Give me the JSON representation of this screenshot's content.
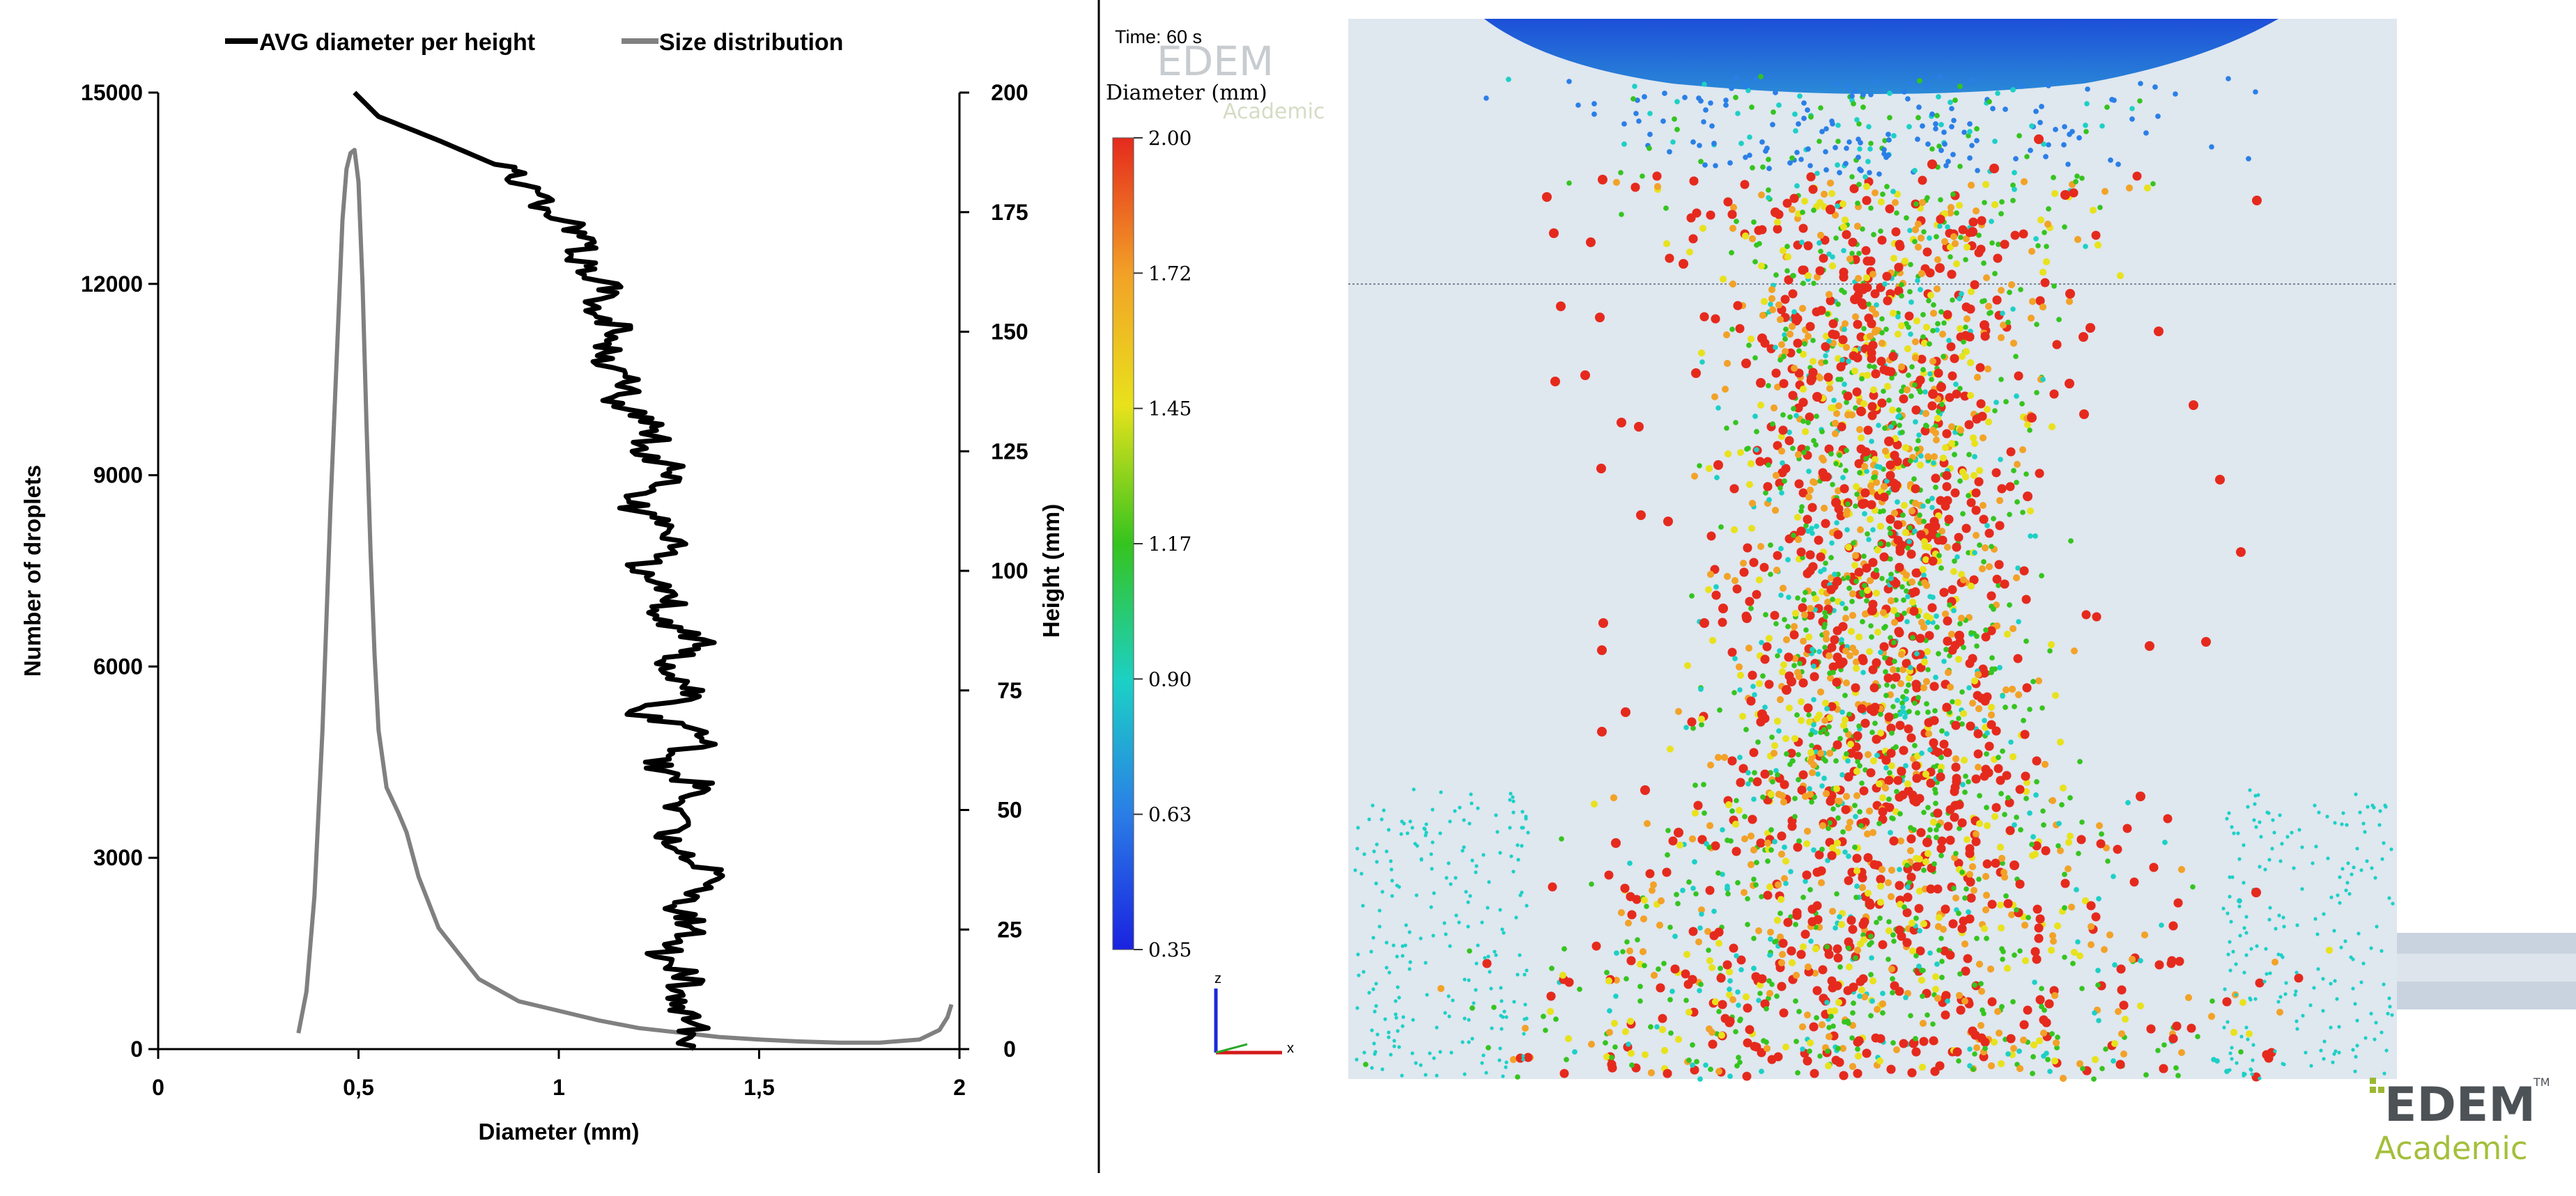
{
  "chart_data": {
    "type": "line",
    "legend": {
      "position": "top",
      "entries": [
        {
          "name": "AVG diameter per height",
          "color": "#000000"
        },
        {
          "name": "Size distribution",
          "color": "#808080"
        }
      ]
    },
    "xlabel": "Diameter (mm)",
    "ylabel_left": "Number of droplets",
    "ylabel_right": "Height (mm)",
    "xlim": [
      0,
      2
    ],
    "ylim_left": [
      0,
      15000
    ],
    "ylim_right": [
      0,
      200
    ],
    "x_ticks": [
      0,
      0.5,
      1,
      1.5,
      2
    ],
    "x_tick_labels": [
      "0",
      "0,5",
      "1",
      "1,5",
      "2"
    ],
    "y_left_ticks": [
      0,
      3000,
      6000,
      9000,
      12000,
      15000
    ],
    "y_left_tick_labels": [
      "0",
      "3000",
      "6000",
      "9000",
      "12000",
      "15000"
    ],
    "y_right_ticks": [
      0,
      25,
      50,
      75,
      100,
      125,
      150,
      175,
      200
    ],
    "y_right_tick_labels": [
      "0",
      "25",
      "50",
      "75",
      "100",
      "125",
      "150",
      "175",
      "200"
    ],
    "series": [
      {
        "name": "Size distribution",
        "axis": "left",
        "x": [
          0.35,
          0.37,
          0.39,
          0.41,
          0.43,
          0.45,
          0.46,
          0.47,
          0.48,
          0.49,
          0.5,
          0.51,
          0.52,
          0.53,
          0.54,
          0.55,
          0.57,
          0.6,
          0.62,
          0.65,
          0.7,
          0.75,
          0.8,
          0.9,
          1.0,
          1.1,
          1.2,
          1.3,
          1.4,
          1.5,
          1.6,
          1.7,
          1.8,
          1.9,
          1.95,
          1.97,
          1.98
        ],
        "y": [
          250,
          900,
          2400,
          5000,
          8500,
          11500,
          13000,
          13800,
          14050,
          14100,
          13600,
          12000,
          9800,
          7800,
          6200,
          5000,
          4100,
          3700,
          3400,
          2700,
          1900,
          1500,
          1100,
          750,
          600,
          450,
          330,
          260,
          190,
          150,
          120,
          100,
          100,
          150,
          300,
          500,
          700
        ]
      },
      {
        "name": "AVG diameter per height",
        "axis": "right",
        "y": [
          0,
          5,
          10,
          15,
          20,
          25,
          30,
          35,
          40,
          45,
          50,
          55,
          60,
          65,
          70,
          75,
          80,
          85,
          90,
          95,
          100,
          105,
          110,
          115,
          120,
          125,
          130,
          135,
          140,
          145,
          150,
          155,
          160,
          165,
          170,
          175,
          180,
          185,
          190,
          195,
          200
        ],
        "x": [
          1.33,
          1.34,
          1.3,
          1.32,
          1.25,
          1.35,
          1.28,
          1.42,
          1.31,
          1.27,
          1.3,
          1.36,
          1.22,
          1.4,
          1.2,
          1.36,
          1.26,
          1.39,
          1.22,
          1.32,
          1.18,
          1.28,
          1.24,
          1.16,
          1.3,
          1.21,
          1.26,
          1.13,
          1.2,
          1.1,
          1.17,
          1.08,
          1.12,
          1.04,
          1.07,
          0.97,
          0.94,
          0.84,
          0.7,
          0.55,
          0.49
        ]
      }
    ]
  },
  "simulation": {
    "time_label": "Time: 60 s",
    "colorbar_title": "Diameter (mm)",
    "colorbar_ticks": [
      "2.00",
      "1.72",
      "1.45",
      "1.17",
      "0.90",
      "0.63",
      "0.35"
    ],
    "colorbar_colors": [
      "#e52a1d",
      "#f2a227",
      "#e8e21c",
      "#35c41e",
      "#1cd0c6",
      "#2a7fe6",
      "#1a22e0"
    ],
    "axis_z": "z",
    "axis_x": "x",
    "logo_text": "EDEM",
    "logo_tm": "TM",
    "logo_sub": "Academic",
    "watermark_text": "EDEM",
    "watermark_sub": "Academic"
  }
}
